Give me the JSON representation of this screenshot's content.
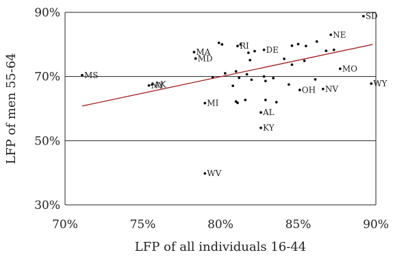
{
  "chart_data": {
    "type": "scatter",
    "xlabel": "LFP of all individuals 16-44",
    "ylabel": "LFP of men 55-64",
    "xlim": [
      70,
      90
    ],
    "ylim": [
      30,
      90
    ],
    "x_ticks": [
      70,
      75,
      80,
      85,
      90
    ],
    "y_ticks": [
      30,
      50,
      70,
      90
    ],
    "x_tick_labels": [
      "70%",
      "75%",
      "80%",
      "85%",
      "90%"
    ],
    "y_tick_labels": [
      "30%",
      "50%",
      "70%",
      "90%"
    ],
    "grid": "horizontal",
    "colors": {
      "trend": "#a01818",
      "points": "#111111",
      "grid": "#222222"
    },
    "trend_line": {
      "x": [
        71.1,
        89.8
      ],
      "y": [
        60.8,
        80.0
      ]
    },
    "points": [
      {
        "x": 71.1,
        "y": 70.4,
        "label": "MS"
      },
      {
        "x": 75.4,
        "y": 67.2,
        "label": "NY"
      },
      {
        "x": 75.6,
        "y": 67.5,
        "label": "AK"
      },
      {
        "x": 78.3,
        "y": 77.6,
        "label": "MA"
      },
      {
        "x": 78.4,
        "y": 75.6,
        "label": "MD"
      },
      {
        "x": 79.0,
        "y": 61.7,
        "label": "MI"
      },
      {
        "x": 79.0,
        "y": 39.8,
        "label": "WV"
      },
      {
        "x": 81.1,
        "y": 79.5,
        "label": "RI"
      },
      {
        "x": 82.8,
        "y": 78.3,
        "label": "DE"
      },
      {
        "x": 82.6,
        "y": 58.8,
        "label": "AL"
      },
      {
        "x": 82.6,
        "y": 54.0,
        "label": "KY"
      },
      {
        "x": 87.1,
        "y": 83.0,
        "label": "NE"
      },
      {
        "x": 89.2,
        "y": 88.8,
        "label": "SD"
      },
      {
        "x": 87.7,
        "y": 72.4,
        "label": "MO"
      },
      {
        "x": 86.6,
        "y": 66.1,
        "label": "NV"
      },
      {
        "x": 85.1,
        "y": 65.8,
        "label": "OH"
      },
      {
        "x": 89.7,
        "y": 67.8,
        "label": "WY"
      },
      {
        "x": 79.9,
        "y": 80.5
      },
      {
        "x": 80.1,
        "y": 80.0
      },
      {
        "x": 81.3,
        "y": 80.0
      },
      {
        "x": 81.8,
        "y": 77.4
      },
      {
        "x": 82.2,
        "y": 77.9
      },
      {
        "x": 81.9,
        "y": 75.1
      },
      {
        "x": 84.1,
        "y": 75.5
      },
      {
        "x": 84.6,
        "y": 79.6
      },
      {
        "x": 85.0,
        "y": 80.1
      },
      {
        "x": 85.5,
        "y": 79.5
      },
      {
        "x": 86.2,
        "y": 80.9
      },
      {
        "x": 86.8,
        "y": 78.0
      },
      {
        "x": 87.3,
        "y": 78.3
      },
      {
        "x": 85.4,
        "y": 74.9
      },
      {
        "x": 84.6,
        "y": 73.7
      },
      {
        "x": 80.3,
        "y": 71.0
      },
      {
        "x": 81.0,
        "y": 71.6
      },
      {
        "x": 81.2,
        "y": 69.6
      },
      {
        "x": 81.7,
        "y": 70.7
      },
      {
        "x": 79.5,
        "y": 69.8
      },
      {
        "x": 82.8,
        "y": 70.0
      },
      {
        "x": 83.4,
        "y": 69.5
      },
      {
        "x": 82.0,
        "y": 69.0
      },
      {
        "x": 80.8,
        "y": 67.1
      },
      {
        "x": 82.9,
        "y": 68.6
      },
      {
        "x": 84.4,
        "y": 67.5
      },
      {
        "x": 86.1,
        "y": 69.1
      },
      {
        "x": 81.0,
        "y": 62.2
      },
      {
        "x": 81.1,
        "y": 61.8
      },
      {
        "x": 81.6,
        "y": 62.7
      },
      {
        "x": 82.9,
        "y": 62.7
      },
      {
        "x": 83.6,
        "y": 62.0
      }
    ]
  }
}
